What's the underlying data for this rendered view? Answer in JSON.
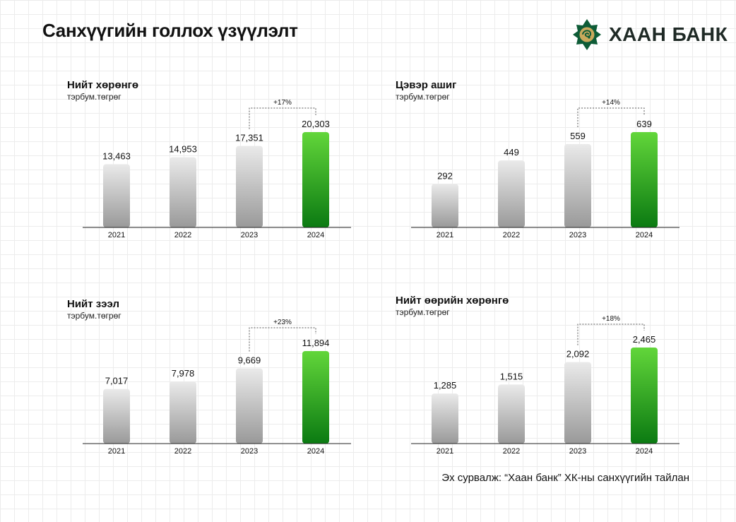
{
  "page": {
    "title": "Санхүүгийн голлох үзүүлэлт",
    "source": "Эх сурвалж: “Хаан банк” ХК-ны санхүүгийн тайлан"
  },
  "logo": {
    "text": "ХААН БАНК",
    "colors": {
      "mark_bg": "#0e5c37",
      "mark_emblem": "#c9a95c"
    },
    "icon": "khan-bank-logo-icon"
  },
  "colors": {
    "highlight_top": "#62d63a",
    "highlight_bottom": "#0b7a12",
    "bar_top": "#eaeaea",
    "bar_bottom": "#999999"
  },
  "chart_data": [
    {
      "type": "bar",
      "title": "Нийт хөрөнгө",
      "unit": "тэрбум.төгрөг",
      "categories": [
        "2021",
        "2022",
        "2023",
        "2024"
      ],
      "values": [
        13463,
        14953,
        17351,
        20303
      ],
      "value_labels": [
        "13,463",
        "14,953",
        "17,351",
        "20,303"
      ],
      "highlight_index": 3,
      "growth": {
        "from": "2023",
        "to": "2024",
        "label": "+17%"
      }
    },
    {
      "type": "bar",
      "title": "Цэвэр ашиг",
      "unit": "тэрбум.төгрөг",
      "categories": [
        "2021",
        "2022",
        "2023",
        "2024"
      ],
      "values": [
        292,
        449,
        559,
        639
      ],
      "value_labels": [
        "292",
        "449",
        "559",
        "639"
      ],
      "highlight_index": 3,
      "growth": {
        "from": "2023",
        "to": "2024",
        "label": "+14%"
      }
    },
    {
      "type": "bar",
      "title": "Нийт зээл",
      "unit": "тэрбум.төгрөг",
      "categories": [
        "2021",
        "2022",
        "2023",
        "2024"
      ],
      "values": [
        7017,
        7978,
        9669,
        11894
      ],
      "value_labels": [
        "7,017",
        "7,978",
        "9,669",
        "11,894"
      ],
      "highlight_index": 3,
      "growth": {
        "from": "2023",
        "to": "2024",
        "label": "+23%"
      }
    },
    {
      "type": "bar",
      "title": "Нийт өөрийн хөрөнгө",
      "unit": "тэрбум.төгрөг",
      "categories": [
        "2021",
        "2022",
        "2023",
        "2024"
      ],
      "values": [
        1285,
        1515,
        2092,
        2465
      ],
      "value_labels": [
        "1,285",
        "1,515",
        "2,092",
        "2,465"
      ],
      "highlight_index": 3,
      "growth": {
        "from": "2023",
        "to": "2024",
        "label": "+18%"
      }
    }
  ]
}
